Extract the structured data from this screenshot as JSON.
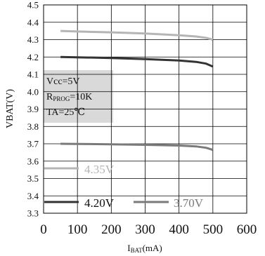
{
  "chart_data": {
    "type": "line",
    "xlabel": {
      "main": "I",
      "sub": "BAT",
      "suffix": "(mA)"
    },
    "ylabel": "VBAT(V)",
    "xlim": [
      0,
      600
    ],
    "ylim": [
      3.3,
      4.5
    ],
    "x_ticks": [
      0,
      100,
      200,
      300,
      400,
      500,
      600
    ],
    "x_tick_labels": [
      "0",
      "100",
      "200",
      "300",
      "400",
      "500",
      "600"
    ],
    "y_ticks": [
      3.3,
      3.4,
      3.5,
      3.6,
      3.7,
      3.8,
      3.9,
      4.0,
      4.1,
      4.2,
      4.3,
      4.4,
      4.5
    ],
    "y_tick_labels": [
      "3.3",
      "3.4",
      "3.5",
      "3.6",
      "3.7",
      "3.8",
      "3.9",
      "4.0",
      "4.1",
      "4.2",
      "4.3",
      "4.4",
      "4.5"
    ],
    "grid": true,
    "series": [
      {
        "name": "4.35V",
        "color": "#b5b5b5",
        "x": [
          50,
          100,
          200,
          300,
          400,
          450,
          480,
          500
        ],
        "y": [
          4.35,
          4.347,
          4.342,
          4.335,
          4.325,
          4.318,
          4.31,
          4.3
        ]
      },
      {
        "name": "4.20V",
        "color": "#333333",
        "x": [
          50,
          100,
          200,
          300,
          400,
          450,
          480,
          500
        ],
        "y": [
          4.2,
          4.198,
          4.194,
          4.188,
          4.18,
          4.172,
          4.162,
          4.145
        ]
      },
      {
        "name": "3.70V",
        "color": "#7a7a7a",
        "x": [
          50,
          100,
          200,
          300,
          400,
          450,
          480,
          500
        ],
        "y": [
          3.7,
          3.699,
          3.697,
          3.694,
          3.69,
          3.685,
          3.677,
          3.665
        ]
      }
    ],
    "annotation": {
      "lines": [
        {
          "main": "Vcc=5V",
          "sub": "",
          "suffix": ""
        },
        {
          "main": "R",
          "sub": "PROG",
          "suffix": "=10K"
        },
        {
          "main": "TA=25℃",
          "sub": "",
          "suffix": ""
        }
      ],
      "background": "#d9d9d9"
    }
  }
}
